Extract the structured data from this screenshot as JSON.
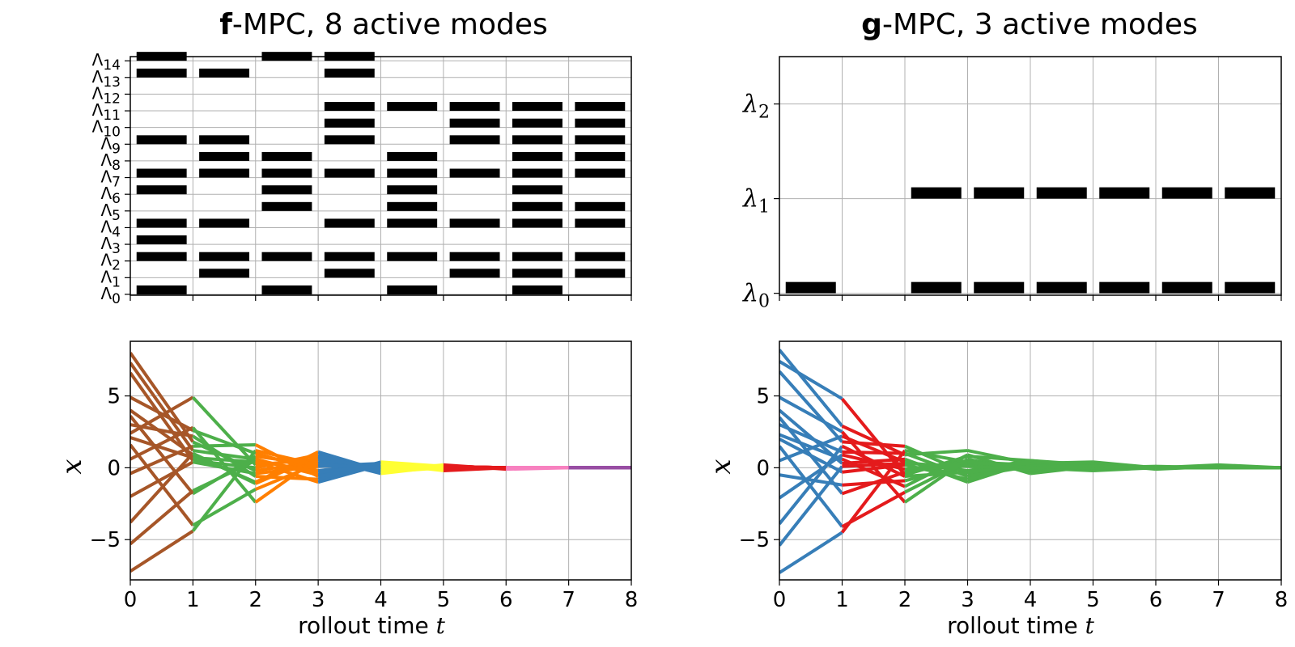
{
  "chart_data": [
    {
      "id": "f_modes",
      "type": "mode-activation",
      "title_bold": "f",
      "title_rest": "-MPC, 8 active modes",
      "x": [
        0,
        1,
        2,
        3,
        4,
        5,
        6,
        7
      ],
      "xlim": [
        0,
        8
      ],
      "mode_symbol": "Λ",
      "modes": [
        "0",
        "1",
        "2",
        "3",
        "4",
        "5",
        "6",
        "7",
        "8",
        "9",
        "10",
        "11",
        "12",
        "13",
        "14"
      ],
      "active": [
        [
          0,
          2,
          3,
          4,
          6,
          7,
          9,
          13,
          14
        ],
        [
          1,
          2,
          4,
          7,
          8,
          9,
          13
        ],
        [
          0,
          2,
          5,
          6,
          7,
          8,
          14
        ],
        [
          1,
          2,
          4,
          7,
          9,
          10,
          11,
          13,
          14
        ],
        [
          0,
          2,
          4,
          5,
          6,
          7,
          8,
          11
        ],
        [
          1,
          2,
          4,
          7,
          9,
          10,
          11
        ],
        [
          0,
          1,
          2,
          4,
          5,
          6,
          7,
          8,
          9,
          10,
          11
        ],
        [
          1,
          2,
          4,
          5,
          7,
          8,
          9,
          10,
          11
        ]
      ],
      "grid": true
    },
    {
      "id": "g_modes",
      "type": "mode-activation",
      "title_bold": "g",
      "title_rest": "-MPC, 3 active modes",
      "x": [
        0,
        1,
        2,
        3,
        4,
        5,
        6,
        7
      ],
      "xlim": [
        0,
        8
      ],
      "mode_symbol": "λ",
      "modes": [
        "0",
        "1",
        "2"
      ],
      "active": [
        [
          0
        ],
        [],
        [
          0,
          1
        ],
        [
          0,
          1
        ],
        [
          0,
          1
        ],
        [
          0,
          1
        ],
        [
          0,
          1
        ],
        [
          0,
          1
        ]
      ],
      "grid": true
    },
    {
      "id": "f_traj",
      "type": "line",
      "ylabel": "x",
      "xlabel": "rollout time",
      "xlabel_var": "t",
      "xlim": [
        0,
        8
      ],
      "ylim": [
        -7.8,
        8.8
      ],
      "xticks": [
        0,
        1,
        2,
        3,
        4,
        5,
        6,
        7,
        8
      ],
      "yticks": [
        -5,
        0,
        5
      ],
      "grid": true,
      "segment_colors": [
        "#a65628",
        "#4daf4a",
        "#ff7f00",
        "#377eb8",
        "#ffff33",
        "#e41a1c",
        "#f781bf",
        "#984ea3"
      ],
      "series": [
        {
          "values": [
            8.0,
            1.8,
            -0.2,
            0.4,
            0.1,
            0.1,
            0.0,
            0.0,
            0.0
          ]
        },
        {
          "values": [
            7.3,
            1.2,
            0.6,
            -0.5,
            0.2,
            -0.1,
            0.0,
            0.0,
            0.0
          ]
        },
        {
          "values": [
            6.6,
            0.5,
            0.0,
            0.9,
            -0.3,
            0.1,
            0.0,
            0.0,
            0.0
          ]
        },
        {
          "values": [
            4.9,
            2.6,
            1.0,
            -0.2,
            0.3,
            -0.1,
            0.0,
            0.0,
            0.0
          ]
        },
        {
          "values": [
            4.0,
            0.9,
            -1.0,
            1.1,
            -0.2,
            0.2,
            -0.1,
            0.0,
            0.0
          ]
        },
        {
          "values": [
            3.6,
            -1.8,
            0.8,
            0.2,
            -0.1,
            0.0,
            0.0,
            0.0,
            0.0
          ]
        },
        {
          "values": [
            3.0,
            2.2,
            -0.6,
            -0.8,
            0.4,
            0.1,
            0.0,
            0.0,
            0.0
          ]
        },
        {
          "values": [
            2.4,
            4.9,
            0.2,
            0.6,
            -0.3,
            0.0,
            0.0,
            0.0,
            0.0
          ]
        },
        {
          "values": [
            2.1,
            0.7,
            0.4,
            -1.0,
            0.2,
            -0.1,
            0.0,
            0.0,
            0.0
          ]
        },
        {
          "values": [
            1.6,
            -4.0,
            -1.5,
            0.3,
            0.1,
            0.0,
            0.0,
            0.0,
            0.0
          ]
        },
        {
          "values": [
            0.6,
            2.8,
            -2.4,
            0.7,
            -0.4,
            0.1,
            0.0,
            0.0,
            0.0
          ]
        },
        {
          "values": [
            -0.4,
            1.5,
            1.6,
            -0.6,
            0.2,
            0.0,
            0.0,
            0.0,
            0.0
          ]
        },
        {
          "values": [
            -2.0,
            0.4,
            -0.4,
            0.1,
            0.3,
            -0.2,
            0.0,
            0.0,
            0.0
          ]
        },
        {
          "values": [
            -3.8,
            1.0,
            -1.1,
            0.8,
            -0.2,
            0.1,
            0.0,
            0.0,
            0.0
          ]
        },
        {
          "values": [
            -5.3,
            -1.6,
            0.5,
            -0.3,
            0.1,
            0.0,
            0.0,
            0.0,
            0.0
          ]
        },
        {
          "values": [
            -7.2,
            -4.4,
            1.2,
            0.2,
            0.0,
            0.1,
            0.0,
            0.0,
            0.0
          ]
        }
      ]
    },
    {
      "id": "g_traj",
      "type": "line",
      "ylabel": "x",
      "xlabel": "rollout time",
      "xlabel_var": "t",
      "xlim": [
        0,
        8
      ],
      "ylim": [
        -7.8,
        8.8
      ],
      "xticks": [
        0,
        1,
        2,
        3,
        4,
        5,
        6,
        7,
        8
      ],
      "yticks": [
        -5,
        0,
        5
      ],
      "grid": true,
      "segment_colors": [
        "#377eb8",
        "#e41a1c",
        "#4daf4a",
        "#4daf4a",
        "#4daf4a",
        "#4daf4a",
        "#4daf4a",
        "#4daf4a"
      ],
      "series": [
        {
          "values": [
            8.2,
            2.9,
            0.9,
            1.2,
            0.3,
            0.4,
            0.0,
            0.1,
            0.0
          ]
        },
        {
          "values": [
            7.4,
            4.8,
            -0.5,
            0.8,
            0.5,
            0.2,
            0.0,
            0.2,
            0.0
          ]
        },
        {
          "values": [
            6.7,
            1.8,
            1.5,
            -0.4,
            0.2,
            0.0,
            0.1,
            0.0,
            0.0
          ]
        },
        {
          "values": [
            4.9,
            2.5,
            -2.4,
            0.6,
            -0.3,
            0.3,
            -0.1,
            0.1,
            0.0
          ]
        },
        {
          "values": [
            4.0,
            0.3,
            0.6,
            -1.0,
            0.4,
            -0.1,
            0.0,
            0.0,
            0.0
          ]
        },
        {
          "values": [
            3.5,
            -1.8,
            -0.3,
            0.3,
            -0.2,
            0.2,
            0.0,
            0.0,
            0.0
          ]
        },
        {
          "values": [
            3.0,
            1.1,
            1.0,
            -0.6,
            0.1,
            -0.1,
            0.0,
            0.0,
            0.0
          ]
        },
        {
          "values": [
            2.3,
            0.6,
            -1.3,
            0.9,
            -0.4,
            0.1,
            0.0,
            0.0,
            0.0
          ]
        },
        {
          "values": [
            2.0,
            -0.3,
            0.2,
            -0.8,
            0.3,
            0.0,
            0.0,
            0.0,
            0.0
          ]
        },
        {
          "values": [
            1.5,
            -4.1,
            -1.7,
            0.5,
            0.0,
            -0.2,
            0.0,
            0.0,
            0.0
          ]
        },
        {
          "values": [
            0.5,
            2.2,
            0.4,
            -0.2,
            0.5,
            0.1,
            0.0,
            0.0,
            0.0
          ]
        },
        {
          "values": [
            -0.5,
            -1.2,
            -0.9,
            0.2,
            -0.1,
            0.0,
            0.0,
            0.0,
            0.0
          ]
        },
        {
          "values": [
            -2.1,
            0.9,
            -0.1,
            0.4,
            0.2,
            0.0,
            0.0,
            0.0,
            0.0
          ]
        },
        {
          "values": [
            -3.9,
            1.5,
            -0.6,
            -0.3,
            0.1,
            0.1,
            0.0,
            0.0,
            0.0
          ]
        },
        {
          "values": [
            -5.4,
            0.1,
            0.3,
            0.1,
            -0.1,
            0.0,
            0.0,
            0.0,
            0.0
          ]
        },
        {
          "values": [
            -7.3,
            -4.5,
            1.2,
            0.4,
            0.0,
            0.1,
            0.0,
            0.0,
            0.0
          ]
        }
      ]
    }
  ]
}
